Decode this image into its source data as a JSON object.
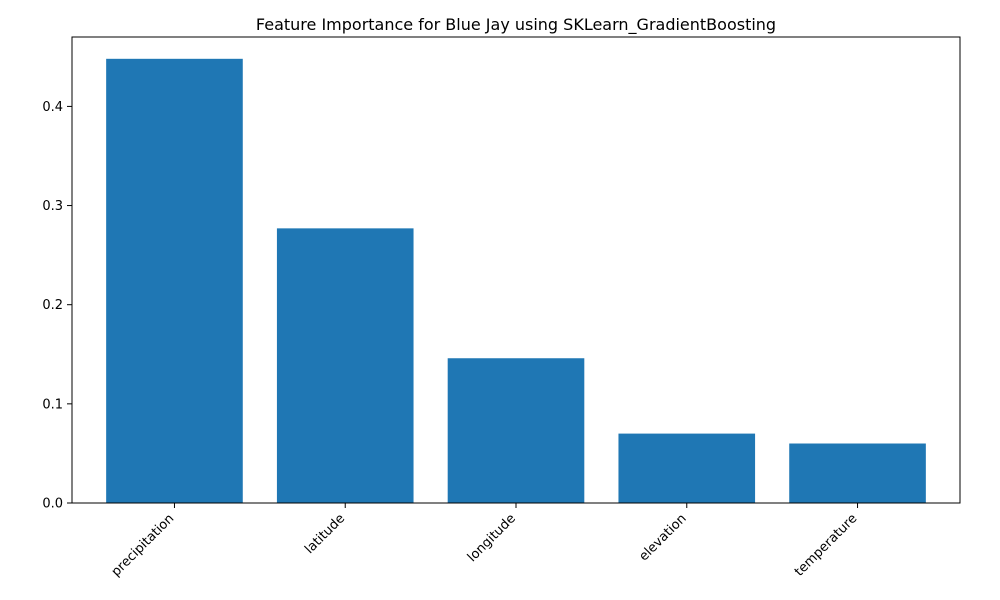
{
  "chart_data": {
    "type": "bar",
    "title": "Feature Importance for Blue Jay using SKLearn_GradientBoosting",
    "xlabel": "",
    "ylabel": "",
    "categories": [
      "precipitation",
      "latitude",
      "longitude",
      "elevation",
      "temperature"
    ],
    "values": [
      0.448,
      0.277,
      0.146,
      0.07,
      0.06
    ],
    "ylim": [
      0,
      0.47
    ],
    "yticks": [
      0.0,
      0.1,
      0.2,
      0.3,
      0.4
    ],
    "ytick_labels": [
      "0.0",
      "0.1",
      "0.2",
      "0.3",
      "0.4"
    ],
    "bar_color": "#1f77b4",
    "grid": false,
    "xtick_rotation": 45
  }
}
